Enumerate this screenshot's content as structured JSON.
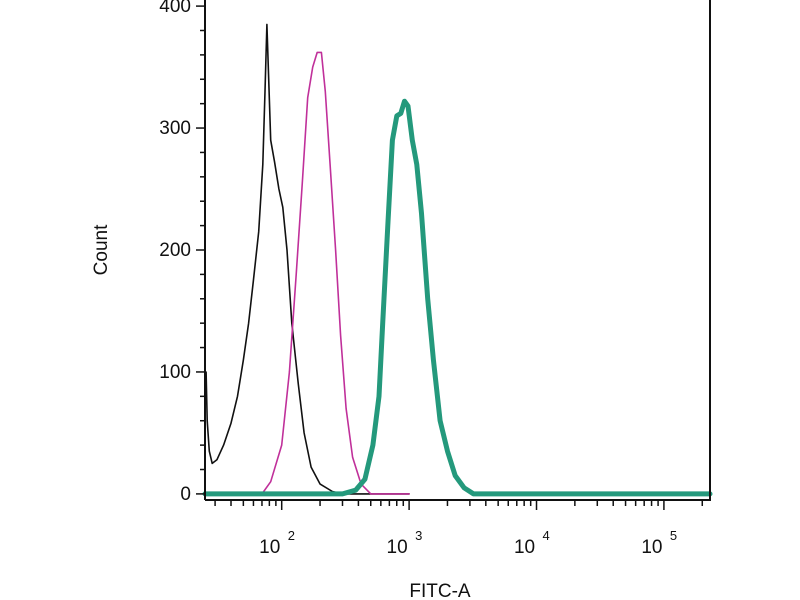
{
  "chart_data": {
    "type": "line",
    "title": "",
    "xlabel": "FITC-A",
    "ylabel": "Count",
    "x_scale": "log",
    "xlim": [
      25,
      230000
    ],
    "ylim": [
      -5,
      405
    ],
    "grid": false,
    "x_ticks": [
      {
        "value": 100,
        "base": "10",
        "exp": "2"
      },
      {
        "value": 1000,
        "base": "10",
        "exp": "3"
      },
      {
        "value": 10000,
        "base": "10",
        "exp": "4"
      },
      {
        "value": 100000,
        "base": "10",
        "exp": "5"
      }
    ],
    "y_ticks": [
      {
        "value": 0,
        "label": "0"
      },
      {
        "value": 100,
        "label": "100"
      },
      {
        "value": 200,
        "label": "200"
      },
      {
        "value": 300,
        "label": "300"
      },
      {
        "value": 400,
        "label": "400"
      }
    ],
    "series": [
      {
        "color": "#111111",
        "line_style": "thin",
        "points": [
          [
            25.5,
            100
          ],
          [
            26,
            60
          ],
          [
            27,
            35
          ],
          [
            28.5,
            25
          ],
          [
            31,
            28
          ],
          [
            35,
            40
          ],
          [
            40,
            58
          ],
          [
            45,
            80
          ],
          [
            50,
            110
          ],
          [
            55,
            140
          ],
          [
            60,
            175
          ],
          [
            66,
            215
          ],
          [
            71,
            270
          ],
          [
            74,
            330
          ],
          [
            76.5,
            385
          ],
          [
            79,
            340
          ],
          [
            82,
            290
          ],
          [
            88,
            272
          ],
          [
            95,
            250
          ],
          [
            102,
            235
          ],
          [
            110,
            200
          ],
          [
            120,
            140
          ],
          [
            135,
            90
          ],
          [
            150,
            50
          ],
          [
            170,
            22
          ],
          [
            200,
            8
          ],
          [
            250,
            2
          ],
          [
            300,
            0
          ],
          [
            1000,
            0
          ]
        ]
      },
      {
        "color": "#c0309a",
        "line_style": "thin",
        "points": [
          [
            45,
            0
          ],
          [
            70,
            0
          ],
          [
            82,
            10
          ],
          [
            100,
            40
          ],
          [
            115,
            100
          ],
          [
            130,
            180
          ],
          [
            145,
            255
          ],
          [
            160,
            325
          ],
          [
            175,
            350
          ],
          [
            190,
            362
          ],
          [
            205,
            362
          ],
          [
            220,
            330
          ],
          [
            240,
            270
          ],
          [
            265,
            200
          ],
          [
            290,
            130
          ],
          [
            320,
            70
          ],
          [
            360,
            30
          ],
          [
            420,
            8
          ],
          [
            500,
            0
          ],
          [
            1000,
            0
          ]
        ]
      },
      {
        "color": "#24997c",
        "line_style": "thick",
        "points": [
          [
            25,
            0
          ],
          [
            300,
            0
          ],
          [
            380,
            3
          ],
          [
            450,
            12
          ],
          [
            520,
            40
          ],
          [
            580,
            80
          ],
          [
            620,
            140
          ],
          [
            680,
            220
          ],
          [
            740,
            290
          ],
          [
            800,
            310
          ],
          [
            860,
            312
          ],
          [
            920,
            322
          ],
          [
            980,
            318
          ],
          [
            1060,
            290
          ],
          [
            1150,
            270
          ],
          [
            1250,
            230
          ],
          [
            1400,
            160
          ],
          [
            1550,
            110
          ],
          [
            1750,
            60
          ],
          [
            2000,
            35
          ],
          [
            2300,
            15
          ],
          [
            2700,
            5
          ],
          [
            3200,
            0
          ],
          [
            230000,
            0
          ]
        ]
      }
    ]
  }
}
